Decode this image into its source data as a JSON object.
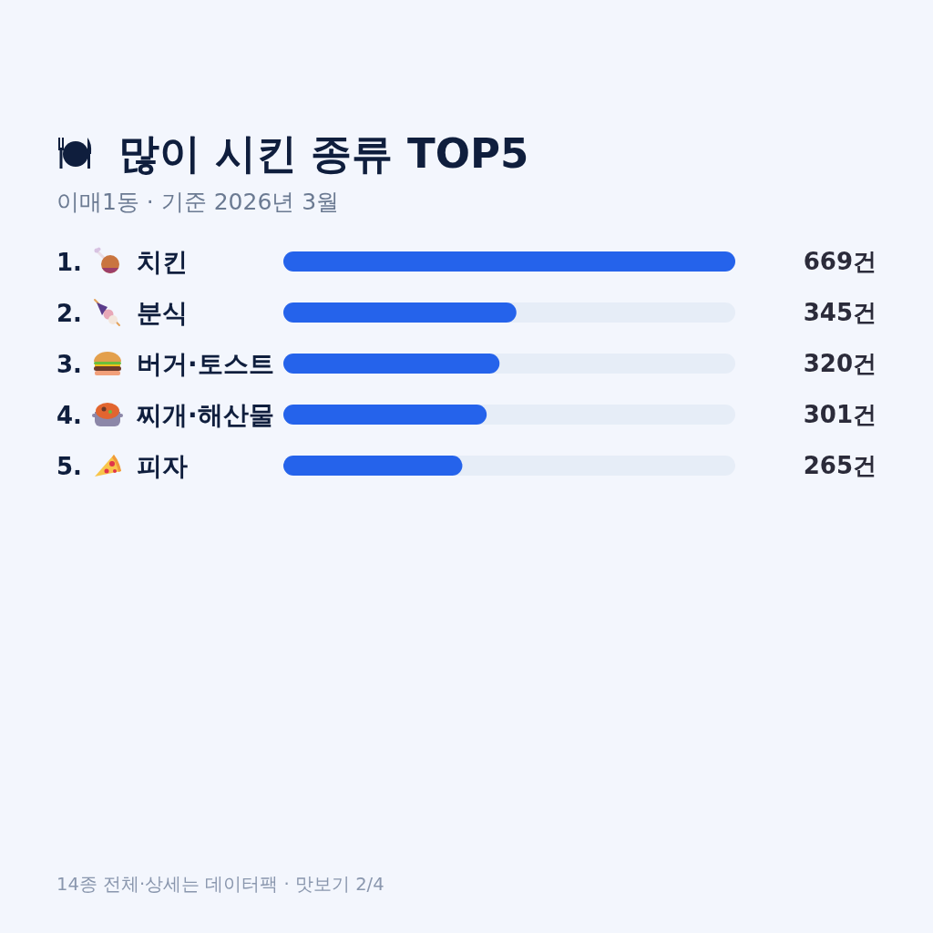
{
  "chart_data": {
    "type": "bar",
    "orientation": "horizontal",
    "title": "많이 시킨 종류 TOP5",
    "subtitle": "이매1동 · 기준 2026년 3월",
    "categories": [
      "1. 치킨",
      "2. 분식",
      "3. 버거·토스트",
      "4. 찌개·해산물",
      "5. 피자"
    ],
    "values": [
      669,
      345,
      320,
      301,
      265
    ],
    "value_labels": [
      "669건",
      "345건",
      "320건",
      "301건",
      "265건"
    ],
    "color": "#2563eb",
    "xlim": [
      0,
      669
    ],
    "tick_labels": "y",
    "annotations": [
      "14종 전체·상세는 데이터팩 · 맛보기 2/4"
    ]
  }
}
